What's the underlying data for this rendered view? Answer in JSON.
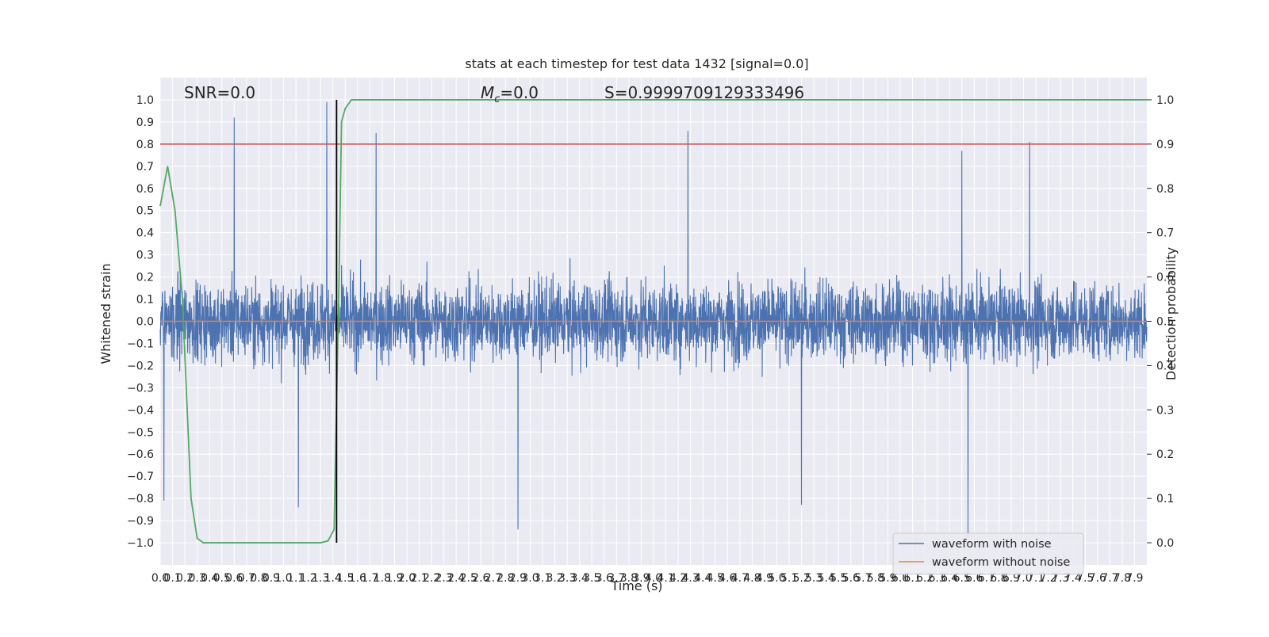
{
  "chart_data": {
    "type": "line",
    "title": "stats at each timestep for test data 1432 [signal=0.0]",
    "xlabel": "Time (s)",
    "ylabel_left": "Whitened strain",
    "ylabel_right": "Detection probability",
    "xlim": [
      0,
      8
    ],
    "ylim_left": [
      -1.1,
      1.1
    ],
    "ylim_right": [
      -0.05,
      1.05
    ],
    "grid": true,
    "legend_position": "lower-right",
    "x_ticks": [
      "0.0",
      "0.1",
      "0.2",
      "0.3",
      "0.4",
      "0.5",
      "0.6",
      "0.7",
      "0.8",
      "0.9",
      "1.0",
      "1.1",
      "1.2",
      "1.3",
      "1.4",
      "1.5",
      "1.6",
      "1.7",
      "1.8",
      "1.9",
      "2.0",
      "2.1",
      "2.2",
      "2.3",
      "2.4",
      "2.5",
      "2.6",
      "2.7",
      "2.8",
      "2.9",
      "3.0",
      "3.1",
      "3.2",
      "3.3",
      "3.4",
      "3.5",
      "3.6",
      "3.7",
      "3.8",
      "3.9",
      "4.0",
      "4.1",
      "4.2",
      "4.3",
      "4.4",
      "4.5",
      "4.6",
      "4.7",
      "4.8",
      "4.9",
      "5.0",
      "5.1",
      "5.2",
      "5.3",
      "5.4",
      "5.5",
      "5.6",
      "5.7",
      "5.8",
      "5.9",
      "6.0",
      "6.1",
      "6.2",
      "6.3",
      "6.4",
      "6.5",
      "6.6",
      "6.7",
      "6.8",
      "6.9",
      "7.0",
      "7.1",
      "7.2",
      "7.3",
      "7.4",
      "7.5",
      "7.6",
      "7.7",
      "7.8",
      "7.9"
    ],
    "y_ticks_left": [
      "−1.0",
      "−0.9",
      "−0.8",
      "−0.7",
      "−0.6",
      "−0.5",
      "−0.4",
      "−0.3",
      "−0.2",
      "−0.1",
      "0.0",
      "0.1",
      "0.2",
      "0.3",
      "0.4",
      "0.5",
      "0.6",
      "0.7",
      "0.8",
      "0.9",
      "1.0"
    ],
    "y_ticks_right": [
      "0.0",
      "0.1",
      "0.2",
      "0.3",
      "0.4",
      "0.5",
      "0.6",
      "0.7",
      "0.8",
      "0.9",
      "1.0"
    ],
    "annotations": {
      "snr": "SNR=0.0",
      "mc_symbol": "M",
      "mc_sub": "c",
      "mc_value": "=0.0",
      "score": "S=0.9999709129333496"
    },
    "threshold": {
      "axis": "right",
      "value": 0.9,
      "color": "#c44e52"
    },
    "marker": {
      "x": 1.43,
      "color": "#000000"
    },
    "series": [
      {
        "name": "waveform with noise",
        "axis": "left",
        "color": "#4c72b0",
        "note": "whitened noise, roughly |y| ≤ 0.4 with sparse spikes",
        "peaks": [
          {
            "x": 0.03,
            "y": -0.81
          },
          {
            "x": 0.6,
            "y": 0.92
          },
          {
            "x": 1.12,
            "y": -0.84
          },
          {
            "x": 1.35,
            "y": 0.99
          },
          {
            "x": 1.75,
            "y": 0.85
          },
          {
            "x": 2.9,
            "y": -0.94
          },
          {
            "x": 4.28,
            "y": 0.86
          },
          {
            "x": 5.2,
            "y": -0.83
          },
          {
            "x": 6.55,
            "y": -0.97
          },
          {
            "x": 6.5,
            "y": 0.77
          },
          {
            "x": 7.05,
            "y": 0.81
          }
        ]
      },
      {
        "name": "waveform without noise",
        "axis": "left",
        "color": "#dd8452",
        "x": [
          0,
          8
        ],
        "y": [
          0,
          0
        ]
      },
      {
        "name": "Detection probability",
        "axis": "right",
        "color": "#55a868",
        "x": [
          0.0,
          0.06,
          0.12,
          0.18,
          0.25,
          0.3,
          0.35,
          1.3,
          1.36,
          1.41,
          1.45,
          1.47,
          1.5,
          1.55,
          8.0
        ],
        "y": [
          0.76,
          0.85,
          0.75,
          0.55,
          0.1,
          0.01,
          0.0,
          0.0,
          0.004,
          0.03,
          0.6,
          0.95,
          0.98,
          1.0,
          1.0
        ]
      }
    ],
    "legend": [
      "waveform with noise",
      "waveform without noise"
    ]
  }
}
